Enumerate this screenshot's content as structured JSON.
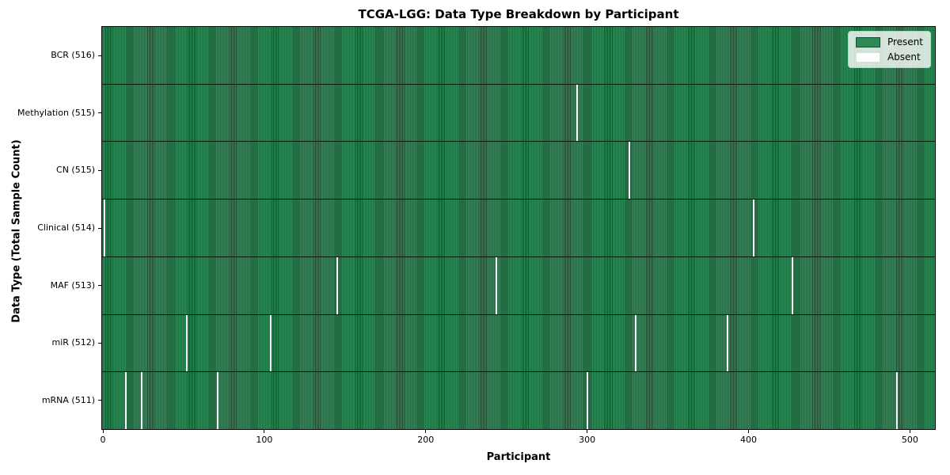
{
  "colors": {
    "present": "#2e8b57",
    "present_edge": "#1a4c30",
    "absent": "#ffffff",
    "absent_swatch_border": "#d9ded9",
    "row_divider": "#051a0c",
    "axis": "#000000",
    "legend_bg": "rgba(255,255,255,0.8)",
    "legend_border": "#c8c8c8"
  },
  "chart_data": {
    "type": "heatmap",
    "title": "TCGA-LGG: Data Type Breakdown by Participant",
    "xlabel": "Participant",
    "ylabel": "Data Type (Total Sample Count)",
    "n_participants": 516,
    "xlim": [
      -0.5,
      515.5
    ],
    "x_ticks": [
      0,
      100,
      200,
      300,
      400,
      500
    ],
    "grid": false,
    "legend_position": "upper right",
    "legend": [
      {
        "label": "Present",
        "color": "#2e8b57"
      },
      {
        "label": "Absent",
        "color": "#ffffff"
      }
    ],
    "rows": [
      {
        "label": "BCR (516)",
        "data_type": "BCR",
        "total_sample_count": 516,
        "absent_participants": []
      },
      {
        "label": "Methylation (515)",
        "data_type": "Methylation",
        "total_sample_count": 515,
        "absent_participants": [
          294
        ]
      },
      {
        "label": "CN (515)",
        "data_type": "CN",
        "total_sample_count": 515,
        "absent_participants": [
          326
        ]
      },
      {
        "label": "Clinical (514)",
        "data_type": "Clinical",
        "total_sample_count": 514,
        "absent_participants": [
          1,
          403
        ]
      },
      {
        "label": "MAF (513)",
        "data_type": "MAF",
        "total_sample_count": 513,
        "absent_participants": [
          145,
          244,
          427
        ]
      },
      {
        "label": "miR (512)",
        "data_type": "miR",
        "total_sample_count": 512,
        "absent_participants": [
          52,
          104,
          330,
          387
        ]
      },
      {
        "label": "mRNA (511)",
        "data_type": "mRNA",
        "total_sample_count": 511,
        "absent_participants": [
          14,
          24,
          71,
          300,
          492
        ]
      }
    ]
  }
}
